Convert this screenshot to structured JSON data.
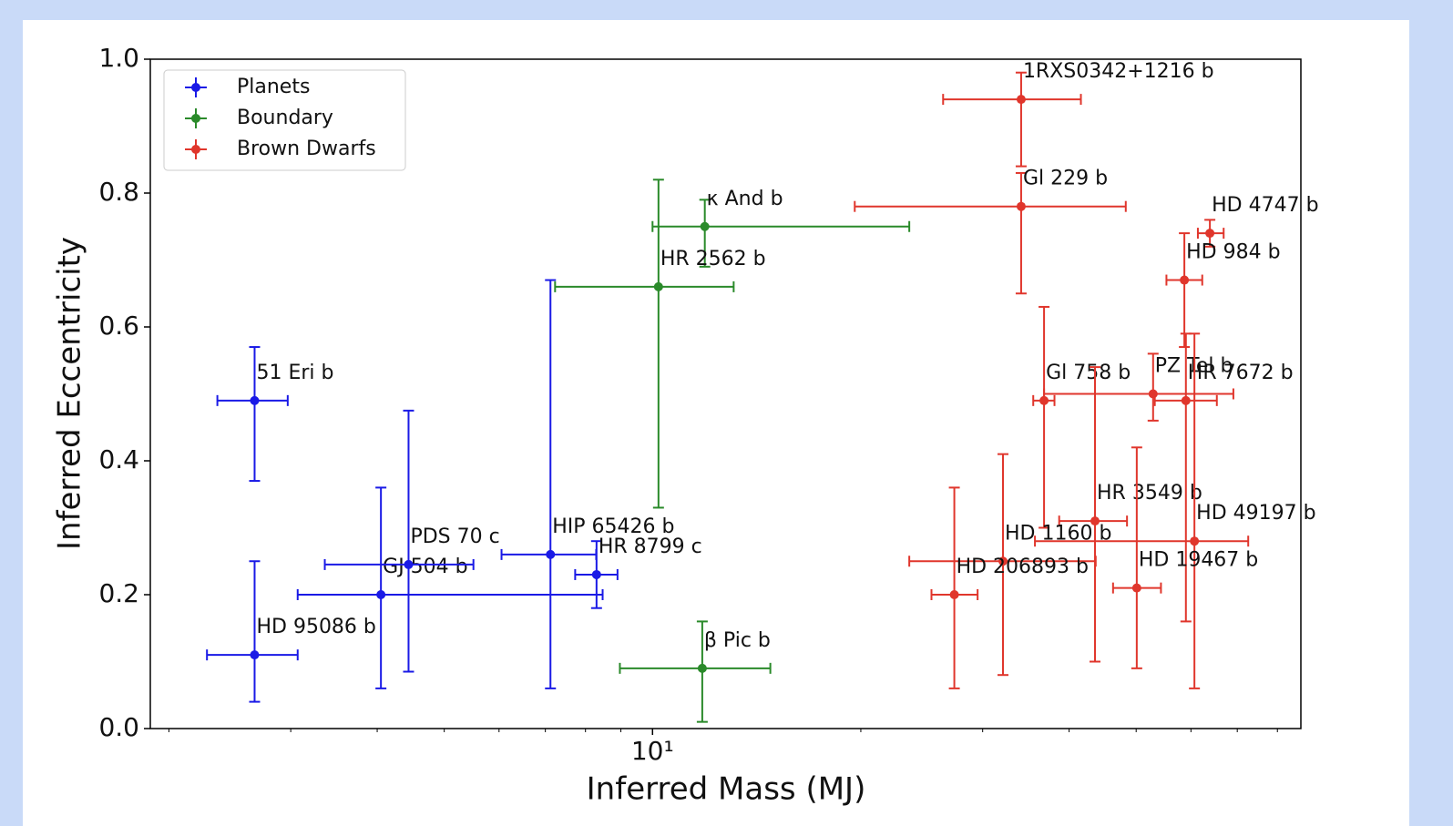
{
  "chart_data": {
    "type": "scatter",
    "xlabel": "Inferred Mass (MJ)",
    "ylabel": "Inferred Eccentricity",
    "xscale": "log",
    "xlim": [
      1.88,
      86.5
    ],
    "xticks": [
      {
        "value": 10,
        "label": "10¹"
      }
    ],
    "xminorticks": [
      2,
      3,
      4,
      5,
      6,
      7,
      8,
      9,
      20,
      30,
      40,
      50,
      60,
      70,
      80
    ],
    "ylim": [
      0,
      1
    ],
    "yticks": [
      {
        "value": 0,
        "label": "0.0"
      },
      0.2,
      0.4,
      0.6,
      0.8,
      {
        "value": 1,
        "label": "1.0"
      }
    ],
    "legend": "upper left",
    "series": [
      {
        "name": "Planets",
        "color": "#1a1ae6",
        "labels": [
          "51 Eri b",
          "HD 95086 b",
          "GJ 504 b",
          "PDS 70 c",
          "HIP 65426 b",
          "HR 8799 c"
        ],
        "x": [
          2.66,
          2.66,
          4.05,
          4.44,
          7.12,
          8.3
        ],
        "xlow": [
          2.35,
          2.27,
          3.07,
          3.36,
          6.05,
          7.73
        ],
        "xhigh": [
          2.97,
          3.07,
          8.47,
          5.51,
          8.29,
          8.9
        ],
        "values": [
          0.49,
          0.11,
          0.2,
          0.245,
          0.26,
          0.23
        ],
        "ylow": [
          0.37,
          0.04,
          0.06,
          0.085,
          0.06,
          0.18
        ],
        "yhigh": [
          0.57,
          0.25,
          0.36,
          0.475,
          0.67,
          0.28
        ]
      },
      {
        "name": "Boundary",
        "color": "#2a8a2a",
        "labels": [
          "κ And b",
          "HR 2562 b",
          "β Pic b"
        ],
        "x": [
          11.9,
          10.2,
          11.8
        ],
        "xlow": [
          10,
          7.23,
          8.97
        ],
        "xhigh": [
          23.5,
          13.1,
          14.8
        ],
        "values": [
          0.75,
          0.66,
          0.09
        ],
        "ylow": [
          0.69,
          0.33,
          0.01
        ],
        "yhigh": [
          0.79,
          0.82,
          0.16
        ]
      },
      {
        "name": "Brown Dwarfs",
        "color": "#e0362c",
        "labels": [
          "1RXS0342+1216 b",
          "Gl 229 b",
          "HD 4747 b",
          "HD 984 b",
          "Gl 758 b",
          "PZ Tel b",
          "HR 7672 b",
          "HR 3549 b",
          "HD 49197 b",
          "HD 1160 b",
          "HD 206893 b",
          "HD 19467 b"
        ],
        "x": [
          34.1,
          34.1,
          63.9,
          58.7,
          36.8,
          52.9,
          59.0,
          43.6,
          60.7,
          32.1,
          27.3,
          50.1
        ],
        "xlow": [
          26.3,
          19.6,
          61.4,
          55.3,
          35.5,
          36.8,
          53.2,
          38.7,
          35.7,
          23.5,
          25.3,
          46.3
        ],
        "xhigh": [
          41.6,
          48.3,
          66.9,
          62.3,
          38.1,
          69.1,
          65.4,
          48.5,
          72.6,
          43.7,
          29.5,
          54.3
        ],
        "values": [
          0.94,
          0.78,
          0.74,
          0.67,
          0.49,
          0.5,
          0.49,
          0.31,
          0.28,
          0.25,
          0.2,
          0.21
        ],
        "ylow": [
          0.84,
          0.65,
          0.72,
          0.57,
          0.3,
          0.46,
          0.16,
          0.1,
          0.06,
          0.08,
          0.06,
          0.09
        ],
        "yhigh": [
          0.98,
          0.83,
          0.76,
          0.74,
          0.63,
          0.56,
          0.59,
          0.54,
          0.59,
          0.41,
          0.36,
          0.42
        ]
      }
    ]
  }
}
